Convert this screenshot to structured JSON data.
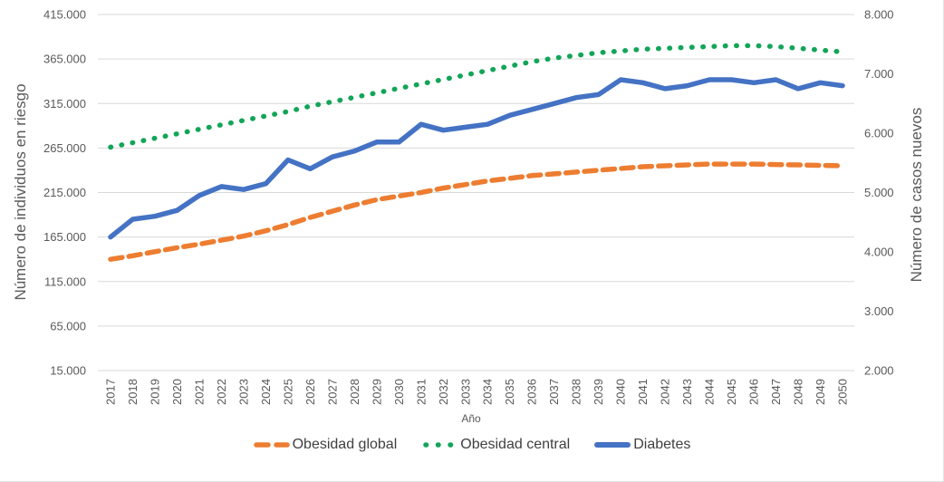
{
  "chart_data": {
    "type": "line",
    "title": "",
    "xlabel": "Año",
    "ylabel": "Número de individuos en riesgo",
    "y2label": "Número de casos nuevos",
    "ylim": [
      15000,
      415000
    ],
    "y2lim": [
      2000,
      8000
    ],
    "grid": true,
    "legend_position": "bottom",
    "x": [
      2017,
      2018,
      2019,
      2020,
      2021,
      2022,
      2023,
      2024,
      2025,
      2026,
      2027,
      2028,
      2029,
      2030,
      2031,
      2032,
      2033,
      2034,
      2035,
      2036,
      2037,
      2038,
      2039,
      2040,
      2041,
      2042,
      2043,
      2044,
      2045,
      2046,
      2047,
      2048,
      2049,
      2050
    ],
    "x_labels": [
      "2017",
      "2018",
      "2019",
      "2020",
      "2021",
      "2022",
      "2023",
      "2024",
      "2025",
      "2026",
      "2027",
      "2028",
      "2029",
      "2030",
      "2031",
      "2032",
      "2033",
      "2034",
      "2035",
      "2036",
      "2037",
      "2038",
      "2039",
      "2040",
      "2041",
      "2042",
      "2043",
      "2044",
      "2045",
      "2046",
      "2047",
      "2048",
      "2049",
      "2050"
    ],
    "left_axis": {
      "title": "Número de individuos en riesgo",
      "min": 15000,
      "max": 415000,
      "step": 50000,
      "tick_labels": [
        "15.000",
        "65.000",
        "115.000",
        "165.000",
        "215.000",
        "265.000",
        "315.000",
        "365.000",
        "415.000"
      ]
    },
    "right_axis": {
      "title": "Número de casos nuevos",
      "min": 2000,
      "max": 8000,
      "step": 1000,
      "tick_labels": [
        "2.000",
        "3.000",
        "4.000",
        "5.000",
        "6.000",
        "7.000",
        "8.000"
      ]
    },
    "series": [
      {
        "name": "Obesidad global",
        "axis": "left",
        "style": "dashed",
        "color": "#ED7D31",
        "values": [
          140000,
          144000,
          148500,
          153000,
          157000,
          161500,
          166000,
          172000,
          179000,
          187000,
          194000,
          201000,
          207000,
          211000,
          215000,
          220000,
          224000,
          228000,
          231000,
          234000,
          236000,
          238000,
          240000,
          242000,
          244000,
          245000,
          246000,
          247000,
          247000,
          247000,
          246500,
          246000,
          245500,
          245000
        ]
      },
      {
        "name": "Obesidad central",
        "axis": "left",
        "style": "dotted",
        "color": "#12A558",
        "values": [
          266000,
          271000,
          276000,
          281000,
          286000,
          291000,
          296000,
          301000,
          306000,
          312000,
          317000,
          322000,
          327000,
          332000,
          337000,
          342000,
          347000,
          352000,
          357000,
          362000,
          366000,
          369000,
          372000,
          374000,
          376000,
          377000,
          378000,
          379000,
          380000,
          380000,
          379000,
          377000,
          375000,
          373000
        ]
      },
      {
        "name": "Diabetes",
        "axis": "right",
        "style": "solid",
        "color": "#4472C4",
        "values": [
          4250,
          4550,
          4600,
          4700,
          4950,
          5100,
          5050,
          5150,
          5550,
          5400,
          5600,
          5700,
          5850,
          5850,
          6150,
          6050,
          6100,
          6150,
          6300,
          6400,
          6500,
          6600,
          6650,
          6900,
          6850,
          6750,
          6800,
          6900,
          6900,
          6850,
          6900,
          6750,
          6850,
          6800
        ]
      }
    ],
    "gridline_color": "#D9D9D9",
    "tick_color": "#595959"
  }
}
